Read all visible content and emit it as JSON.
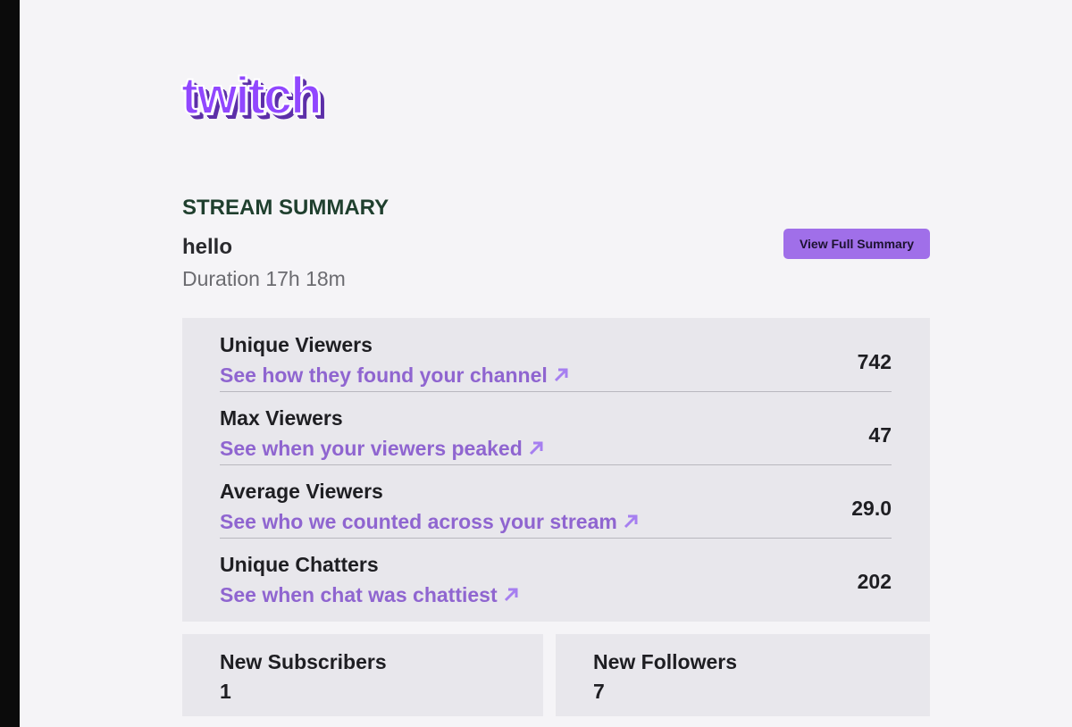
{
  "logo": "twitch",
  "header": {
    "title": "STREAM SUMMARY",
    "stream_name": "hello",
    "duration": "Duration 17h 18m",
    "button": "View Full Summary"
  },
  "stats": [
    {
      "label": "Unique Viewers",
      "link": "See how they found your channel",
      "value": "742"
    },
    {
      "label": "Max Viewers",
      "link": "See when your viewers peaked",
      "value": "47"
    },
    {
      "label": "Average Viewers",
      "link": "See who we counted across your stream",
      "value": "29.0"
    },
    {
      "label": "Unique Chatters",
      "link": "See when chat was chattiest",
      "value": "202"
    }
  ],
  "cards": [
    {
      "label": "New Subscribers",
      "value": "1"
    },
    {
      "label": "New Followers",
      "value": "7"
    }
  ]
}
